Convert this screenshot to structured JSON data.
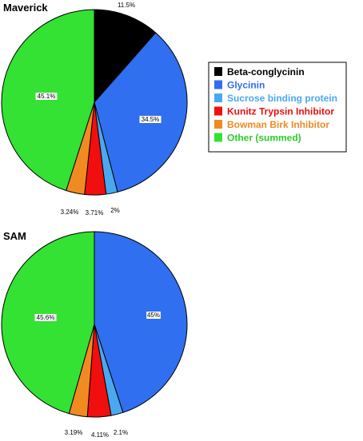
{
  "chart_data": [
    {
      "type": "pie",
      "title": "Maverick",
      "slices": [
        {
          "label": "11.5%",
          "value": 11.5
        },
        {
          "label": "34.5%",
          "value": 34.5
        },
        {
          "label": "2%",
          "value": 2.0
        },
        {
          "label": "3.71%",
          "value": 3.71
        },
        {
          "label": "3.24%",
          "value": 3.24
        },
        {
          "label": "45.1%",
          "value": 45.1
        }
      ]
    },
    {
      "type": "pie",
      "title": "SAM",
      "slices": [
        {
          "label": "",
          "value": 0
        },
        {
          "label": "45%",
          "value": 45.0
        },
        {
          "label": "2.1%",
          "value": 2.1
        },
        {
          "label": "4.11%",
          "value": 4.11
        },
        {
          "label": "3.19%",
          "value": 3.19
        },
        {
          "label": "45.6%",
          "value": 45.6
        }
      ]
    }
  ],
  "legend": [
    {
      "label": "Beta-conglycinin",
      "color": "#000000",
      "text_color": "#000000"
    },
    {
      "label": "Glycinin",
      "color": "#2f6ff0",
      "text_color": "#2f6ff0"
    },
    {
      "label": "Sucrose binding protein",
      "color": "#4aa8f0",
      "text_color": "#4aa8f0"
    },
    {
      "label": "Kunitz Trypsin Inhibitor",
      "color": "#f00e0e",
      "text_color": "#e81010"
    },
    {
      "label": "Bowman Birk Inhibitor",
      "color": "#f28a22",
      "text_color": "#f28a22"
    },
    {
      "label": "Other (summed)",
      "color": "#33e233",
      "text_color": "#2ccc2c"
    }
  ]
}
